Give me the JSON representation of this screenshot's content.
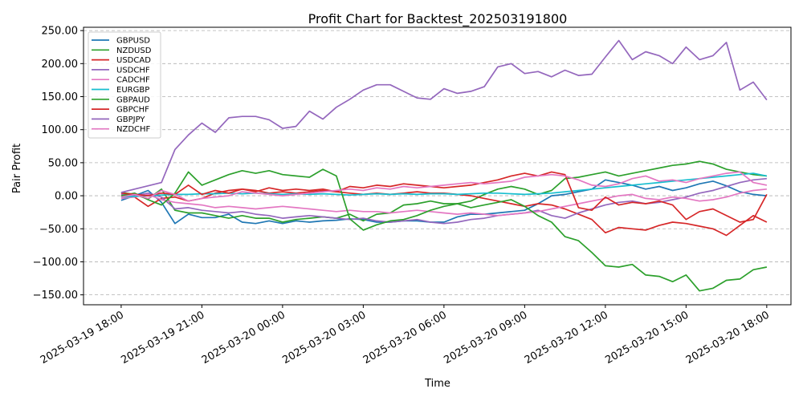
{
  "chart_data": {
    "type": "line",
    "title": "Profit Chart for Backtest_202503191800",
    "xlabel": "Time",
    "ylabel": "Pair Profit",
    "ylim": [
      -165,
      255
    ],
    "xlim_hours": [
      -1.4,
      24.9
    ],
    "grid": "y-dashed",
    "legend_position": "top-left",
    "y_ticks": [
      {
        "value": -150,
        "label": "−150.00"
      },
      {
        "value": -100,
        "label": "−100.00"
      },
      {
        "value": -50,
        "label": "−50.00"
      },
      {
        "value": 0,
        "label": "0.00"
      },
      {
        "value": 50,
        "label": "50.00"
      },
      {
        "value": 100,
        "label": "100.00"
      },
      {
        "value": 150,
        "label": "150.00"
      },
      {
        "value": 200,
        "label": "200.00"
      },
      {
        "value": 250,
        "label": "250.00"
      }
    ],
    "x_ticks": [
      {
        "value": 0,
        "label": "2025-03-19 18:00"
      },
      {
        "value": 3,
        "label": "2025-03-19 21:00"
      },
      {
        "value": 6,
        "label": "2025-03-20 00:00"
      },
      {
        "value": 9,
        "label": "2025-03-20 03:00"
      },
      {
        "value": 12,
        "label": "2025-03-20 06:00"
      },
      {
        "value": 15,
        "label": "2025-03-20 09:00"
      },
      {
        "value": 18,
        "label": "2025-03-20 12:00"
      },
      {
        "value": 21,
        "label": "2025-03-20 15:00"
      },
      {
        "value": 24,
        "label": "2025-03-20 18:00"
      }
    ],
    "x_unit": "hours since 2025-03-19 18:00",
    "series": [
      {
        "name": "GBPUSD",
        "color": "#1f77b4",
        "x": [
          0,
          0.5,
          1,
          1.5,
          2,
          2.5,
          3,
          3.5,
          4,
          4.5,
          5,
          5.5,
          6,
          6.5,
          7,
          7.5,
          8,
          8.5,
          9,
          9.5,
          10,
          10.5,
          11,
          11.5,
          12,
          12.5,
          13,
          13.5,
          14,
          14.5,
          15,
          15.5,
          16,
          16.5,
          17,
          17.5,
          18,
          18.5,
          19,
          19.5,
          20,
          20.5,
          21,
          21.5,
          22,
          22.5,
          23,
          23.5,
          24
        ],
        "y": [
          -7,
          0,
          8,
          -10,
          -42,
          -28,
          -33,
          -33,
          -28,
          -40,
          -42,
          -38,
          -42,
          -38,
          -40,
          -38,
          -37,
          -35,
          -36,
          -40,
          -40,
          -38,
          -38,
          -40,
          -40,
          -32,
          -28,
          -28,
          -26,
          -24,
          -22,
          -12,
          0,
          2,
          6,
          10,
          24,
          20,
          16,
          10,
          14,
          8,
          12,
          18,
          22,
          15,
          6,
          2,
          0
        ]
      },
      {
        "name": "NZDUSD",
        "color": "#2ca02c",
        "x": [
          0,
          0.5,
          1,
          1.5,
          2,
          2.5,
          3,
          3.5,
          4,
          4.5,
          5,
          5.5,
          6,
          6.5,
          7,
          7.5,
          8,
          8.5,
          9,
          9.5,
          10,
          10.5,
          11,
          11.5,
          12,
          12.5,
          13,
          13.5,
          14,
          14.5,
          15,
          15.5,
          16,
          16.5,
          17,
          17.5,
          18,
          18.5,
          19,
          19.5,
          20,
          20.5,
          21,
          21.5,
          22,
          22.5,
          23,
          23.5,
          24
        ],
        "y": [
          5,
          2,
          -5,
          10,
          -22,
          -26,
          -26,
          -30,
          -34,
          -30,
          -34,
          -34,
          -40,
          -36,
          -34,
          -32,
          -34,
          -28,
          -38,
          -28,
          -26,
          -14,
          -12,
          -8,
          -12,
          -12,
          -8,
          2,
          10,
          14,
          10,
          2,
          8,
          26,
          28,
          32,
          36,
          30,
          34,
          38,
          42,
          46,
          48,
          52,
          48,
          40,
          36,
          32,
          30
        ]
      },
      {
        "name": "USDCAD",
        "color": "#d62728",
        "x": [
          0,
          0.5,
          1,
          1.5,
          2,
          2.5,
          3,
          3.5,
          4,
          4.5,
          5,
          5.5,
          6,
          6.5,
          7,
          7.5,
          8,
          8.5,
          9,
          9.5,
          10,
          10.5,
          11,
          11.5,
          12,
          12.5,
          13,
          13.5,
          14,
          14.5,
          15,
          15.5,
          16,
          16.5,
          17,
          17.5,
          18,
          18.5,
          19,
          19.5,
          20,
          20.5,
          21,
          21.5,
          22,
          22.5,
          23,
          23.5,
          24
        ],
        "y": [
          0,
          -2,
          -16,
          -4,
          -2,
          -8,
          -4,
          4,
          8,
          10,
          8,
          4,
          6,
          4,
          6,
          8,
          6,
          4,
          2,
          4,
          2,
          4,
          6,
          4,
          4,
          2,
          0,
          -4,
          -8,
          -12,
          -16,
          -12,
          -14,
          -20,
          -28,
          -36,
          -56,
          -48,
          -50,
          -52,
          -45,
          -40,
          -42,
          -46,
          -50,
          -60,
          -45,
          -30,
          -40
        ]
      },
      {
        "name": "USDCHF",
        "color": "#9467bd",
        "x": [
          0,
          0.5,
          1,
          1.5,
          2,
          2.5,
          3,
          3.5,
          4,
          4.5,
          5,
          5.5,
          6,
          6.5,
          7,
          7.5,
          8,
          8.5,
          9,
          9.5,
          10,
          10.5,
          11,
          11.5,
          12,
          12.5,
          13,
          13.5,
          14,
          14.5,
          15,
          15.5,
          16,
          16.5,
          17,
          17.5,
          18,
          18.5,
          19,
          19.5,
          20,
          20.5,
          21,
          21.5,
          22,
          22.5,
          23,
          23.5,
          24
        ],
        "y": [
          2,
          0,
          4,
          -2,
          -20,
          -18,
          -22,
          -24,
          -26,
          -24,
          -28,
          -30,
          -34,
          -32,
          -30,
          -32,
          -34,
          -36,
          -34,
          -38,
          -40,
          -38,
          -36,
          -40,
          -42,
          -40,
          -36,
          -34,
          -30,
          -28,
          -26,
          -22,
          -30,
          -34,
          -26,
          -20,
          -14,
          -10,
          -8,
          -12,
          -10,
          -6,
          -2,
          4,
          8,
          14,
          20,
          24,
          26
        ]
      },
      {
        "name": "CADCHF",
        "color": "#e377c2",
        "x": [
          0,
          0.5,
          1,
          1.5,
          2,
          2.5,
          3,
          3.5,
          4,
          4.5,
          5,
          5.5,
          6,
          6.5,
          7,
          7.5,
          8,
          8.5,
          9,
          9.5,
          10,
          10.5,
          11,
          11.5,
          12,
          12.5,
          13,
          13.5,
          14,
          14.5,
          15,
          15.5,
          16,
          16.5,
          17,
          17.5,
          18,
          18.5,
          19,
          19.5,
          20,
          20.5,
          21,
          21.5,
          22,
          22.5,
          23,
          23.5,
          24
        ],
        "y": [
          -4,
          -2,
          2,
          -6,
          -10,
          -12,
          -14,
          -18,
          -16,
          -18,
          -20,
          -18,
          -16,
          -18,
          -20,
          -22,
          -24,
          -22,
          -24,
          -24,
          -26,
          -24,
          -22,
          -24,
          -26,
          -28,
          -26,
          -28,
          -30,
          -28,
          -26,
          -24,
          -20,
          -16,
          -12,
          -8,
          -4,
          0,
          2,
          -4,
          -6,
          -2,
          -4,
          -8,
          -6,
          -2,
          4,
          8,
          10
        ]
      },
      {
        "name": "EURGBP",
        "color": "#17becf",
        "x": [
          0,
          0.5,
          1,
          1.5,
          2,
          2.5,
          3,
          3.5,
          4,
          4.5,
          5,
          5.5,
          6,
          6.5,
          7,
          7.5,
          8,
          8.5,
          9,
          9.5,
          10,
          10.5,
          11,
          11.5,
          12,
          12.5,
          13,
          13.5,
          14,
          14.5,
          15,
          15.5,
          16,
          16.5,
          17,
          17.5,
          18,
          18.5,
          19,
          19.5,
          20,
          20.5,
          21,
          21.5,
          22,
          22.5,
          23,
          23.5,
          24
        ],
        "y": [
          -2,
          -1,
          0,
          1,
          2,
          2,
          3,
          3,
          4,
          3,
          4,
          3,
          2,
          3,
          2,
          3,
          2,
          1,
          2,
          3,
          2,
          3,
          2,
          3,
          3,
          2,
          3,
          4,
          4,
          3,
          2,
          3,
          4,
          6,
          8,
          10,
          12,
          14,
          16,
          18,
          20,
          22,
          24,
          26,
          28,
          30,
          32,
          34,
          30
        ]
      },
      {
        "name": "GBPAUD",
        "color": "#2ca02c",
        "x": [
          0,
          0.5,
          1,
          1.5,
          2,
          2.5,
          3,
          3.5,
          4,
          4.5,
          5,
          5.5,
          6,
          6.5,
          7,
          7.5,
          8,
          8.5,
          9,
          9.5,
          10,
          10.5,
          11,
          11.5,
          12,
          12.5,
          13,
          13.5,
          14,
          14.5,
          15,
          15.5,
          16,
          16.5,
          17,
          17.5,
          18,
          18.5,
          19,
          19.5,
          20,
          20.5,
          21,
          21.5,
          22,
          22.5,
          23,
          23.5,
          24
        ],
        "y": [
          0,
          4,
          -6,
          -14,
          4,
          36,
          16,
          24,
          32,
          38,
          34,
          38,
          32,
          30,
          28,
          40,
          30,
          -35,
          -52,
          -44,
          -38,
          -36,
          -30,
          -22,
          -16,
          -12,
          -18,
          -14,
          -10,
          -6,
          -16,
          -30,
          -40,
          -62,
          -68,
          -86,
          -106,
          -108,
          -104,
          -120,
          -122,
          -130,
          -120,
          -144,
          -140,
          -128,
          -126,
          -112,
          -108
        ]
      },
      {
        "name": "GBPCHF",
        "color": "#d62728",
        "x": [
          0,
          0.5,
          1,
          1.5,
          2,
          2.5,
          3,
          3.5,
          4,
          4.5,
          5,
          5.5,
          6,
          6.5,
          7,
          7.5,
          8,
          8.5,
          9,
          9.5,
          10,
          10.5,
          11,
          11.5,
          12,
          12.5,
          13,
          13.5,
          14,
          14.5,
          15,
          15.5,
          16,
          16.5,
          17,
          17.5,
          18,
          18.5,
          19,
          19.5,
          20,
          20.5,
          21,
          21.5,
          22,
          22.5,
          23,
          23.5,
          24
        ],
        "y": [
          4,
          2,
          0,
          4,
          2,
          16,
          2,
          8,
          4,
          10,
          6,
          12,
          8,
          10,
          8,
          10,
          6,
          14,
          12,
          16,
          14,
          18,
          16,
          14,
          12,
          14,
          16,
          20,
          24,
          30,
          34,
          30,
          36,
          32,
          -18,
          -22,
          -2,
          -14,
          -10,
          -12,
          -8,
          -14,
          -36,
          -24,
          -20,
          -30,
          -40,
          -36,
          2
        ]
      },
      {
        "name": "GBPJPY",
        "color": "#9467bd",
        "x": [
          0,
          0.5,
          1,
          1.5,
          2,
          2.5,
          3,
          3.5,
          4,
          4.5,
          5,
          5.5,
          6,
          6.5,
          7,
          7.5,
          8,
          8.5,
          9,
          9.5,
          10,
          10.5,
          11,
          11.5,
          12,
          12.5,
          13,
          13.5,
          14,
          14.5,
          15,
          15.5,
          16,
          16.5,
          17,
          17.5,
          18,
          18.5,
          19,
          19.5,
          20,
          20.5,
          21,
          21.5,
          22,
          22.5,
          23,
          23.5,
          24
        ],
        "y": [
          5,
          10,
          15,
          20,
          70,
          92,
          110,
          96,
          118,
          120,
          120,
          115,
          102,
          105,
          128,
          116,
          134,
          146,
          160,
          168,
          168,
          158,
          148,
          146,
          162,
          155,
          158,
          165,
          195,
          200,
          185,
          188,
          180,
          190,
          182,
          184,
          210,
          235,
          206,
          218,
          212,
          200,
          225,
          206,
          212,
          232,
          160,
          172,
          145
        ]
      },
      {
        "name": "NZDCHF",
        "color": "#e377c2",
        "x": [
          0,
          0.5,
          1,
          1.5,
          2,
          2.5,
          3,
          3.5,
          4,
          4.5,
          5,
          5.5,
          6,
          6.5,
          7,
          7.5,
          8,
          8.5,
          9,
          9.5,
          10,
          10.5,
          11,
          11.5,
          12,
          12.5,
          13,
          13.5,
          14,
          14.5,
          15,
          15.5,
          16,
          16.5,
          17,
          17.5,
          18,
          18.5,
          19,
          19.5,
          20,
          20.5,
          21,
          21.5,
          22,
          22.5,
          23,
          23.5,
          24
        ],
        "y": [
          -2,
          2,
          -4,
          8,
          2,
          -8,
          -4,
          -2,
          0,
          6,
          4,
          2,
          0,
          2,
          4,
          6,
          8,
          10,
          8,
          12,
          10,
          14,
          12,
          14,
          16,
          18,
          20,
          18,
          20,
          22,
          28,
          30,
          32,
          30,
          24,
          16,
          14,
          18,
          26,
          30,
          22,
          24,
          20,
          26,
          30,
          34,
          36,
          20,
          16
        ]
      }
    ]
  }
}
